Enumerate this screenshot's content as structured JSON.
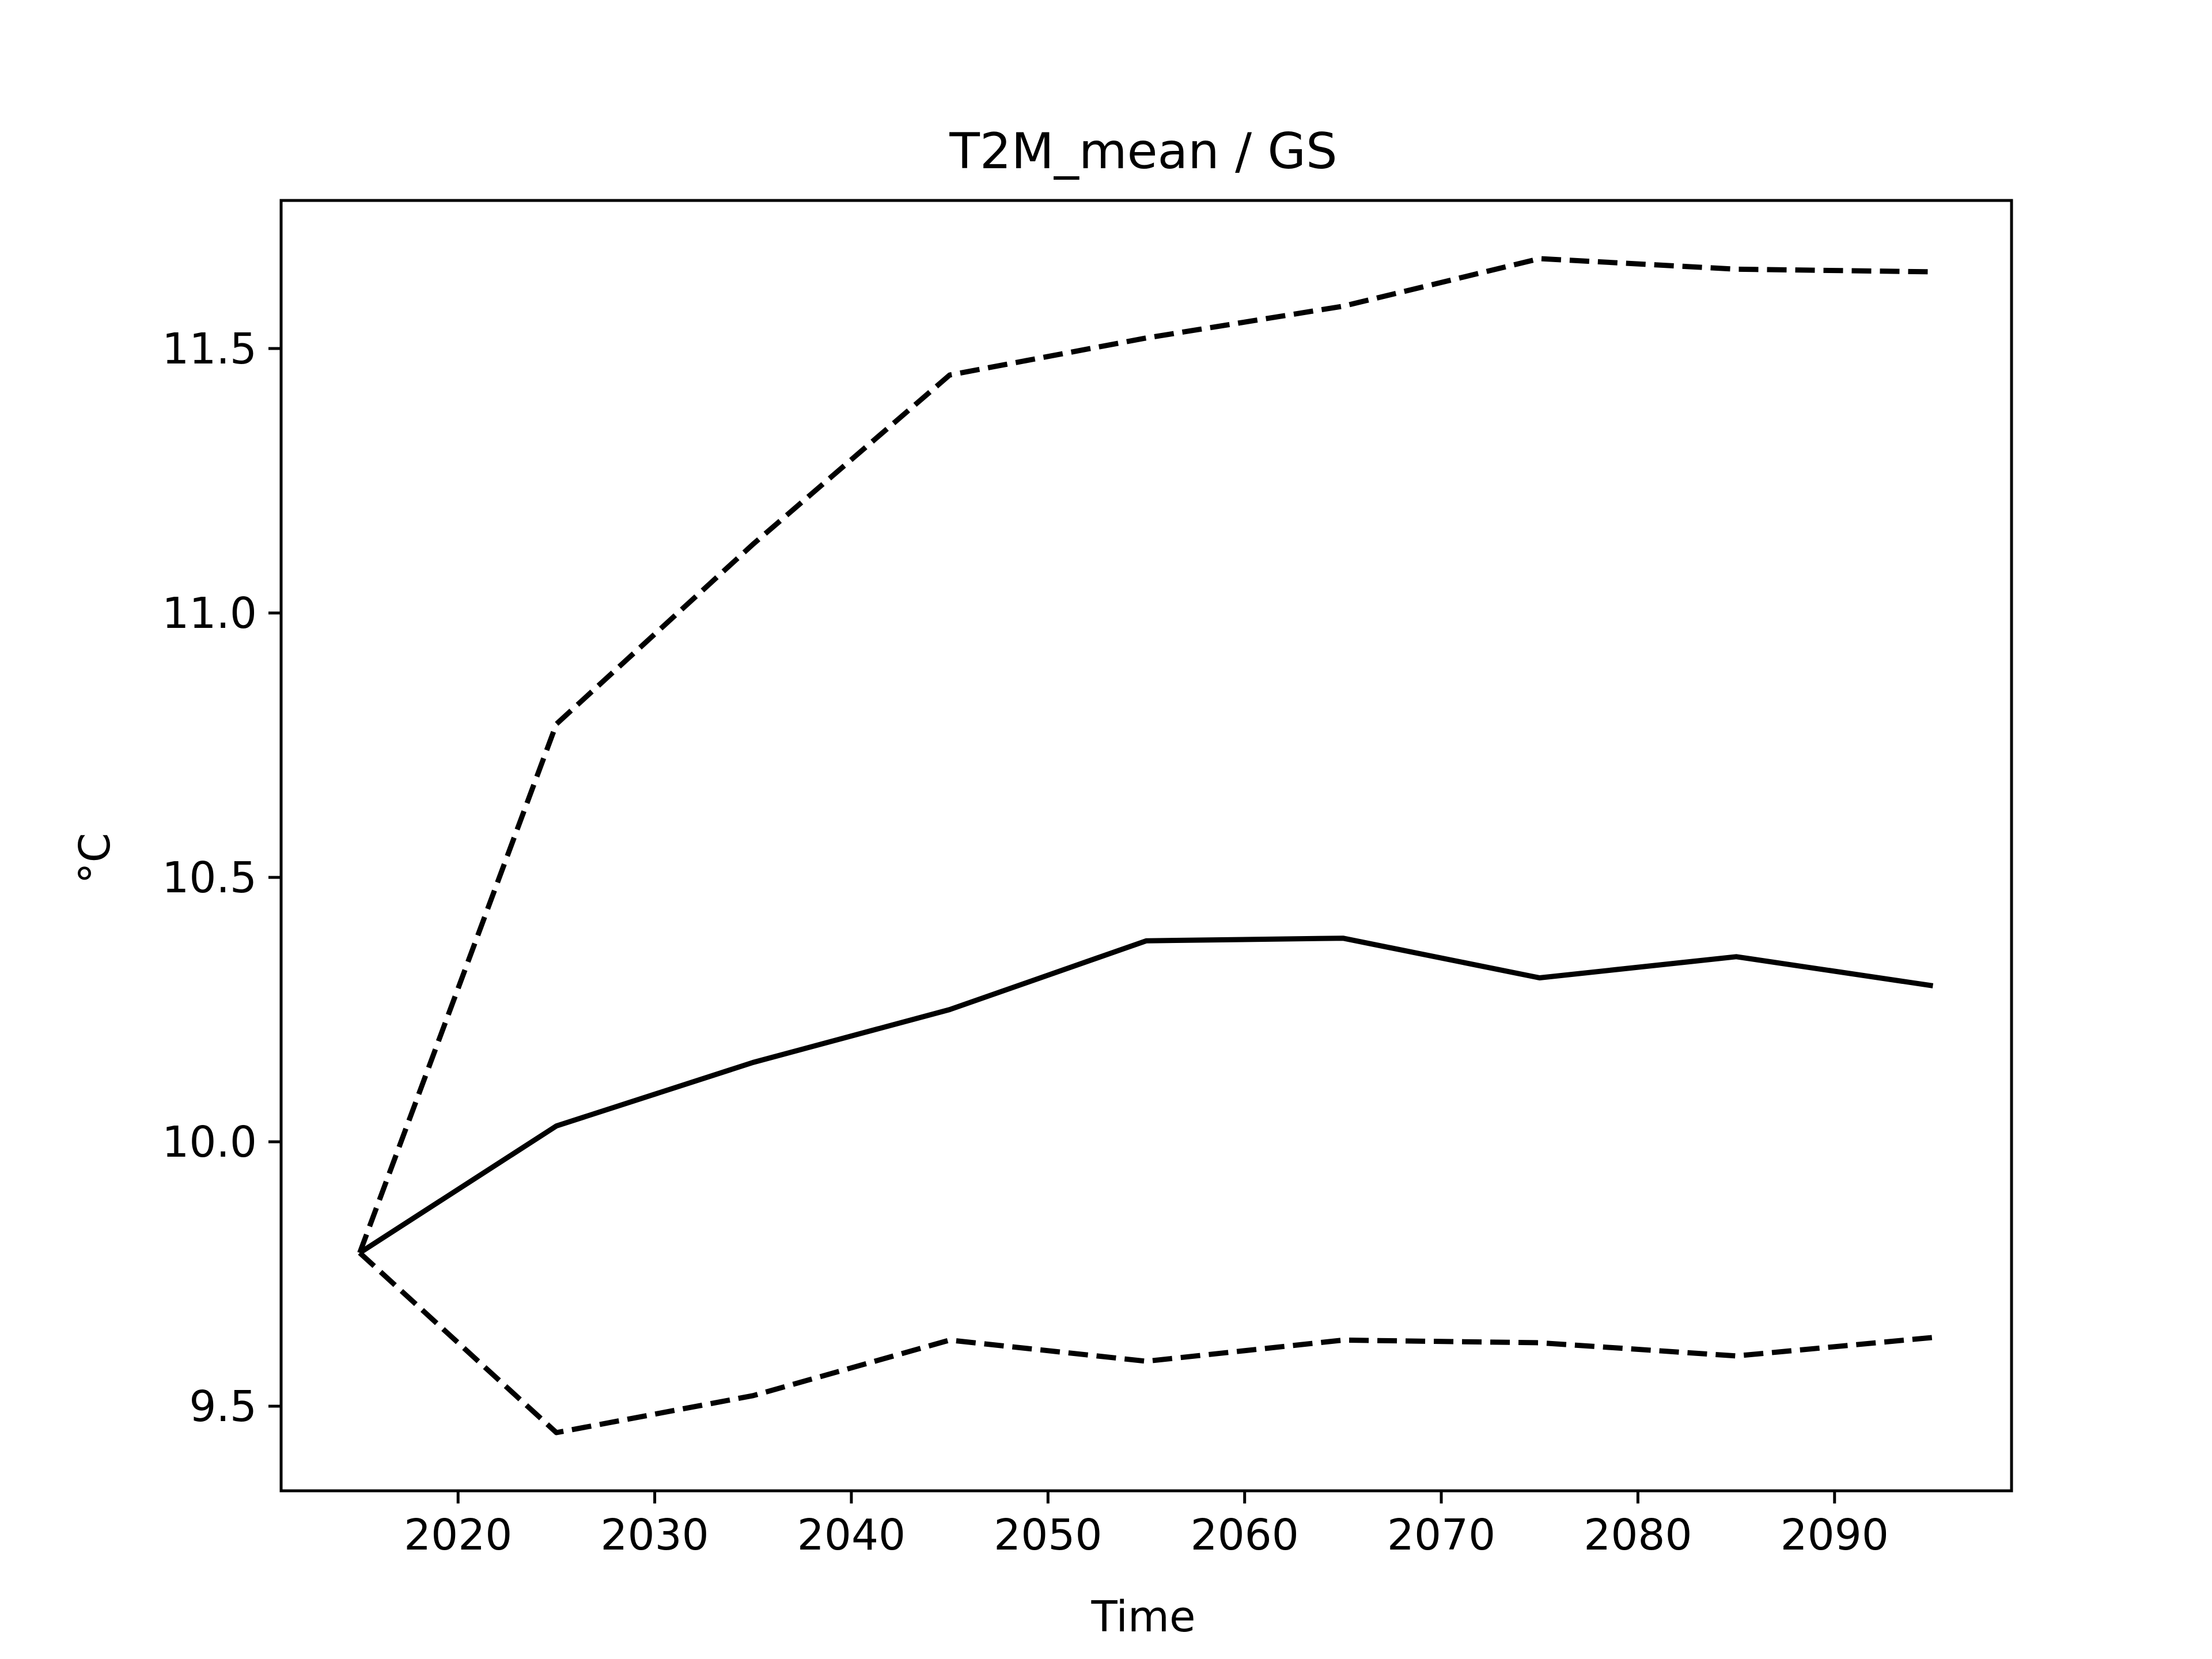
{
  "chart_data": {
    "type": "line",
    "title": "T2M_mean / GS",
    "xlabel": "Time",
    "ylabel": "°C",
    "x": [
      2015,
      2025,
      2035,
      2045,
      2055,
      2065,
      2075,
      2085,
      2095
    ],
    "series": [
      {
        "style": "solid",
        "values": [
          9.79,
          10.03,
          10.15,
          10.25,
          10.38,
          10.385,
          10.31,
          10.35,
          10.295
        ]
      },
      {
        "style": "dashed",
        "values": [
          9.79,
          10.79,
          11.13,
          11.45,
          11.52,
          11.58,
          11.67,
          11.65,
          11.645
        ]
      },
      {
        "style": "dashed",
        "values": [
          9.79,
          9.45,
          9.52,
          9.625,
          9.585,
          9.625,
          9.62,
          9.595,
          9.63
        ]
      }
    ],
    "xlim": [
      2011,
      2099
    ],
    "ylim": [
      9.34,
      11.78
    ],
    "xticks": [
      2020,
      2030,
      2040,
      2050,
      2060,
      2070,
      2080,
      2090
    ],
    "xtick_labels": [
      "2020",
      "2030",
      "2040",
      "2050",
      "2060",
      "2070",
      "2080",
      "2090"
    ],
    "yticks": [
      9.5,
      10.0,
      10.5,
      11.0,
      11.5
    ],
    "ytick_labels": [
      "9.5",
      "10.0",
      "10.5",
      "11.0",
      "11.5"
    ],
    "grid": false,
    "line_color": "#000000"
  }
}
